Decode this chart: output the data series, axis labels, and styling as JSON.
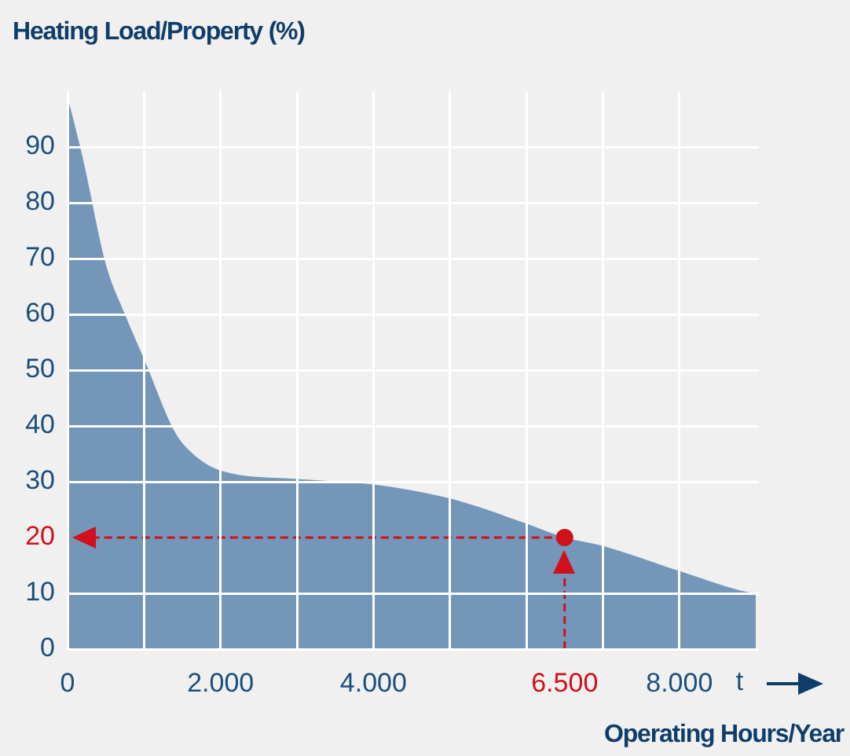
{
  "chart_data": {
    "type": "area",
    "title": "Heating Load/Property (%)",
    "xlabel": "Operating Hours/Year",
    "annotations": [
      "t"
    ],
    "series": [
      {
        "color": "#7396b9",
        "x": [
          0,
          200,
          500,
          750,
          1000,
          1400,
          1600,
          2000,
          3000,
          4000,
          5000,
          6000,
          6500,
          7000,
          8000,
          8800,
          9000
        ],
        "values": [
          99,
          88,
          69,
          60,
          52,
          39,
          35.5,
          32,
          30.5,
          29.5,
          27,
          22.5,
          20,
          18.5,
          14,
          10.5,
          10
        ]
      },
      {
        "type": "scatter",
        "color": "#d0101a",
        "marker": "circle",
        "x": [
          6500
        ],
        "values": [
          20
        ]
      }
    ],
    "xlim": [
      0,
      9040
    ],
    "ylim": [
      0,
      100
    ],
    "xticks": [
      0,
      {
        "value": 1000,
        "label": null
      },
      {
        "value": 2000,
        "label": "2.000"
      },
      {
        "value": 3000,
        "label": null
      },
      {
        "value": 4000,
        "label": "4.000"
      },
      {
        "value": 5000,
        "label": null
      },
      {
        "value": 6000,
        "label": null
      },
      {
        "value": 6500,
        "label": "6.500"
      },
      {
        "value": 7000,
        "label": null
      },
      {
        "value": 8000,
        "label": "8.000"
      }
    ],
    "yticks": [
      0,
      10,
      20,
      30,
      40,
      50,
      60,
      70,
      80,
      90
    ],
    "ref_lines": [
      {
        "axis": "x",
        "value": 6500,
        "color": "#d0101a",
        "line_style": "dashed"
      },
      {
        "axis": "y",
        "value": 20,
        "color": "#d0101a",
        "line_style": "dashed"
      }
    ],
    "grid": true,
    "legend": false
  }
}
